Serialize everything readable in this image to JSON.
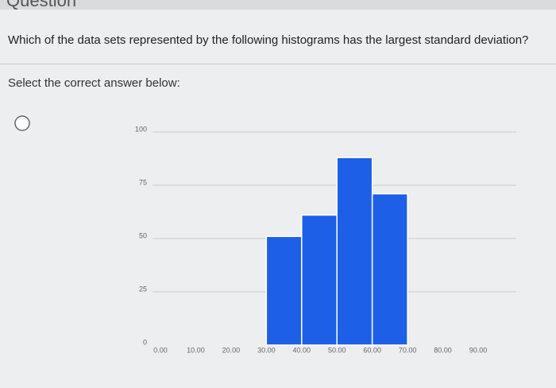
{
  "heading": "Question",
  "question": "Which of the data sets represented by the following histograms has the largest standard deviation?",
  "instruction": "Select the correct answer below:",
  "chart_data": {
    "type": "histogram",
    "bins": [
      0,
      10,
      20,
      30,
      40,
      50,
      60,
      70,
      80,
      90
    ],
    "values": [
      0,
      0,
      0,
      51,
      61,
      88,
      71,
      0,
      0
    ],
    "color": "#1d5fe6",
    "xlim": [
      0,
      90
    ],
    "xticks": [
      {
        "value": 0,
        "label": "0.00"
      },
      {
        "value": 10,
        "label": "10.00"
      },
      {
        "value": 20,
        "label": "20.00"
      },
      {
        "value": 30,
        "label": "30.00"
      },
      {
        "value": 40,
        "label": "40.00"
      },
      {
        "value": 50,
        "label": "50.00"
      },
      {
        "value": 60,
        "label": "60.00"
      },
      {
        "value": 70,
        "label": "70.00"
      },
      {
        "value": 80,
        "label": "80.00"
      },
      {
        "value": 90,
        "label": "90.00"
      }
    ],
    "ylim": [
      0,
      100
    ],
    "yticks": [
      0,
      25,
      50,
      75,
      100
    ],
    "grid": true
  }
}
